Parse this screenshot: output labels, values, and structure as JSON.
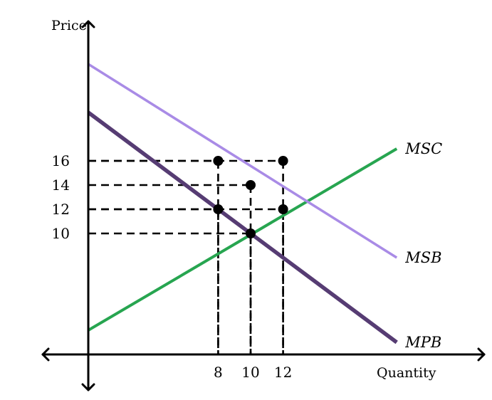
{
  "chart_data": {
    "type": "line",
    "xlabel": "Quantity",
    "ylabel": "Price",
    "xlim": [
      -1.5,
      11
    ],
    "ylim": [
      -1.5,
      20
    ],
    "x_ticks": [
      8,
      10,
      12
    ],
    "y_ticks": [
      10,
      12,
      14,
      16
    ],
    "series": [
      {
        "name": "MSC",
        "color": "#27a550",
        "points": [
          [
            0,
            2
          ],
          [
            19,
            17
          ]
        ]
      },
      {
        "name": "MSB",
        "color": "#a98be6",
        "points": [
          [
            0,
            24
          ],
          [
            19,
            8
          ]
        ]
      },
      {
        "name": "MPB",
        "color": "#563c73",
        "points": [
          [
            0,
            20
          ],
          [
            19,
            1
          ]
        ]
      }
    ],
    "guides": [
      {
        "x": 8,
        "y": 16
      },
      {
        "x": 12,
        "y": 16
      },
      {
        "x": 10,
        "y": 14
      },
      {
        "x": 8,
        "y": 12
      },
      {
        "x": 12,
        "y": 12
      },
      {
        "x": 10,
        "y": 10
      }
    ],
    "points": [
      {
        "x": 8,
        "y": 16
      },
      {
        "x": 12,
        "y": 16
      },
      {
        "x": 10,
        "y": 14
      },
      {
        "x": 8,
        "y": 12
      },
      {
        "x": 12,
        "y": 12
      },
      {
        "x": 10,
        "y": 10
      }
    ],
    "grid": false,
    "legend": "none"
  }
}
